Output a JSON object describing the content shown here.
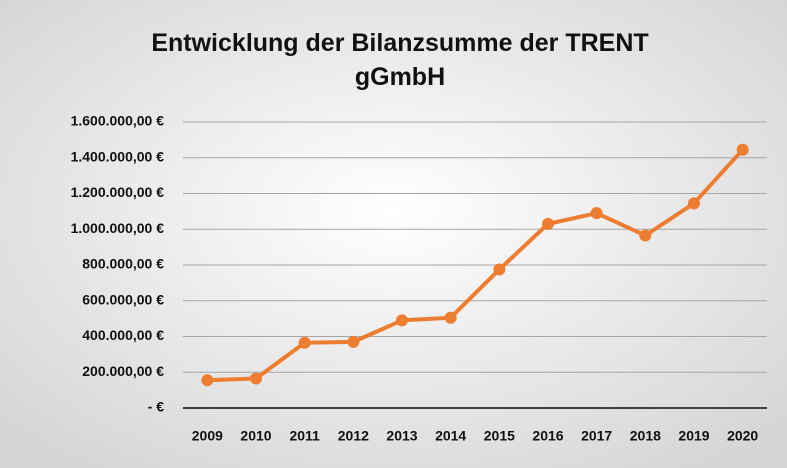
{
  "chart_data": {
    "type": "line",
    "title": "Entwicklung der Bilanzsumme der TRENT gGmbH",
    "categories": [
      "2009",
      "2010",
      "2011",
      "2012",
      "2013",
      "2014",
      "2015",
      "2016",
      "2017",
      "2018",
      "2019",
      "2020"
    ],
    "series": [
      {
        "name": "Bilanzsumme",
        "color": "#ed7d31",
        "values": [
          155000,
          165000,
          365000,
          370000,
          490000,
          505000,
          775000,
          1030000,
          1090000,
          965000,
          1145000,
          1445000
        ]
      }
    ],
    "ylim": [
      0,
      1600000
    ],
    "yticks": [
      {
        "value": 0,
        "label": "-   €"
      },
      {
        "value": 200000,
        "label": "200.000,00 €"
      },
      {
        "value": 400000,
        "label": "400.000,00 €"
      },
      {
        "value": 600000,
        "label": "600.000,00 €"
      },
      {
        "value": 800000,
        "label": "800.000,00 €"
      },
      {
        "value": 1000000,
        "label": "1.000.000,00 €"
      },
      {
        "value": 1200000,
        "label": "1.200.000,00 €"
      },
      {
        "value": 1400000,
        "label": "1.400.000,00 €"
      },
      {
        "value": 1600000,
        "label": "1.600.000,00 €"
      }
    ],
    "grid": true
  }
}
